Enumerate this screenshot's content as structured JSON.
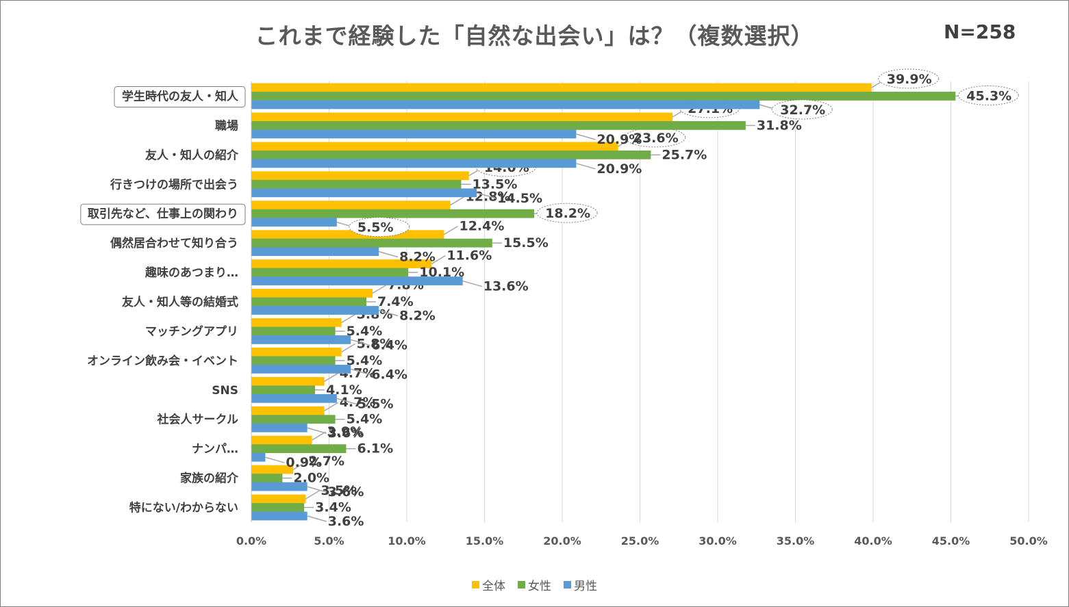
{
  "title": "これまで経験した「自然な出会い」は？（複数選択）",
  "sample_size": "N=258",
  "chart_data": {
    "type": "bar",
    "orientation": "horizontal",
    "title": "これまで経験した「自然な出会い」は？（複数選択）",
    "categories": [
      "学生時代の友人・知人",
      "職場",
      "友人・知人の紹介",
      "行きつけの場所で出会う",
      "取引先など、仕事上の関わり",
      "偶然居合わせて知り合う",
      "趣味のあつまり…",
      "友人・知人等の結婚式",
      "マッチングアプリ",
      "オンライン飲み会・イベント",
      "SNS",
      "社会人サークル",
      "ナンパ…",
      "家族の紹介",
      "特にない/わからない"
    ],
    "boxed_categories": [
      0,
      4
    ],
    "series": [
      {
        "name": "全体",
        "color": "#ffc000",
        "values": [
          39.9,
          27.1,
          23.6,
          14.0,
          12.8,
          12.4,
          11.6,
          7.8,
          5.8,
          5.8,
          4.7,
          4.7,
          3.9,
          2.7,
          3.5
        ],
        "labels": [
          "39.9%",
          "27.1%",
          "23.6%",
          "14.0%",
          "12.8%",
          "12.4%",
          "11.6%",
          "7.8%",
          "5.8%",
          "5.8%",
          "4.7%",
          "4.7%",
          "3.9%",
          "2.7%",
          "3.5%"
        ]
      },
      {
        "name": "女性",
        "color": "#70ad47",
        "values": [
          45.3,
          31.8,
          25.7,
          13.5,
          18.2,
          15.5,
          10.1,
          7.4,
          5.4,
          5.4,
          4.1,
          5.4,
          6.1,
          2.0,
          3.4
        ],
        "labels": [
          "45.3%",
          "31.8%",
          "25.7%",
          "13.5%",
          "18.2%",
          "15.5%",
          "10.1%",
          "7.4%",
          "5.4%",
          "5.4%",
          "4.1%",
          "5.4%",
          "6.1%",
          "2.0%",
          "3.4%"
        ]
      },
      {
        "name": "男性",
        "color": "#5b9bd5",
        "values": [
          32.7,
          20.9,
          20.9,
          14.5,
          5.5,
          8.2,
          13.6,
          8.2,
          6.4,
          6.4,
          5.5,
          3.6,
          0.9,
          3.6,
          3.6
        ],
        "labels": [
          "32.7%",
          "20.9%",
          "20.9%",
          "14.5%",
          "5.5%",
          "8.2%",
          "13.6%",
          "8.2%",
          "6.4%",
          "6.4%",
          "5.5%",
          "3.6%",
          "0.9%",
          "3.6%",
          "3.6%"
        ]
      }
    ],
    "highlighted_labels": [
      [
        0,
        0
      ],
      [
        0,
        1
      ],
      [
        0,
        2
      ],
      [
        1,
        0
      ],
      [
        2,
        0
      ],
      [
        3,
        0
      ],
      [
        4,
        1
      ],
      [
        4,
        2
      ]
    ],
    "x_ticks": [
      "0.0%",
      "5.0%",
      "10.0%",
      "15.0%",
      "20.0%",
      "25.0%",
      "30.0%",
      "35.0%",
      "40.0%",
      "45.0%",
      "50.0%"
    ],
    "xlim": [
      0,
      50
    ],
    "grid": true,
    "legend_position": "bottom",
    "xlabel": "",
    "ylabel": ""
  }
}
